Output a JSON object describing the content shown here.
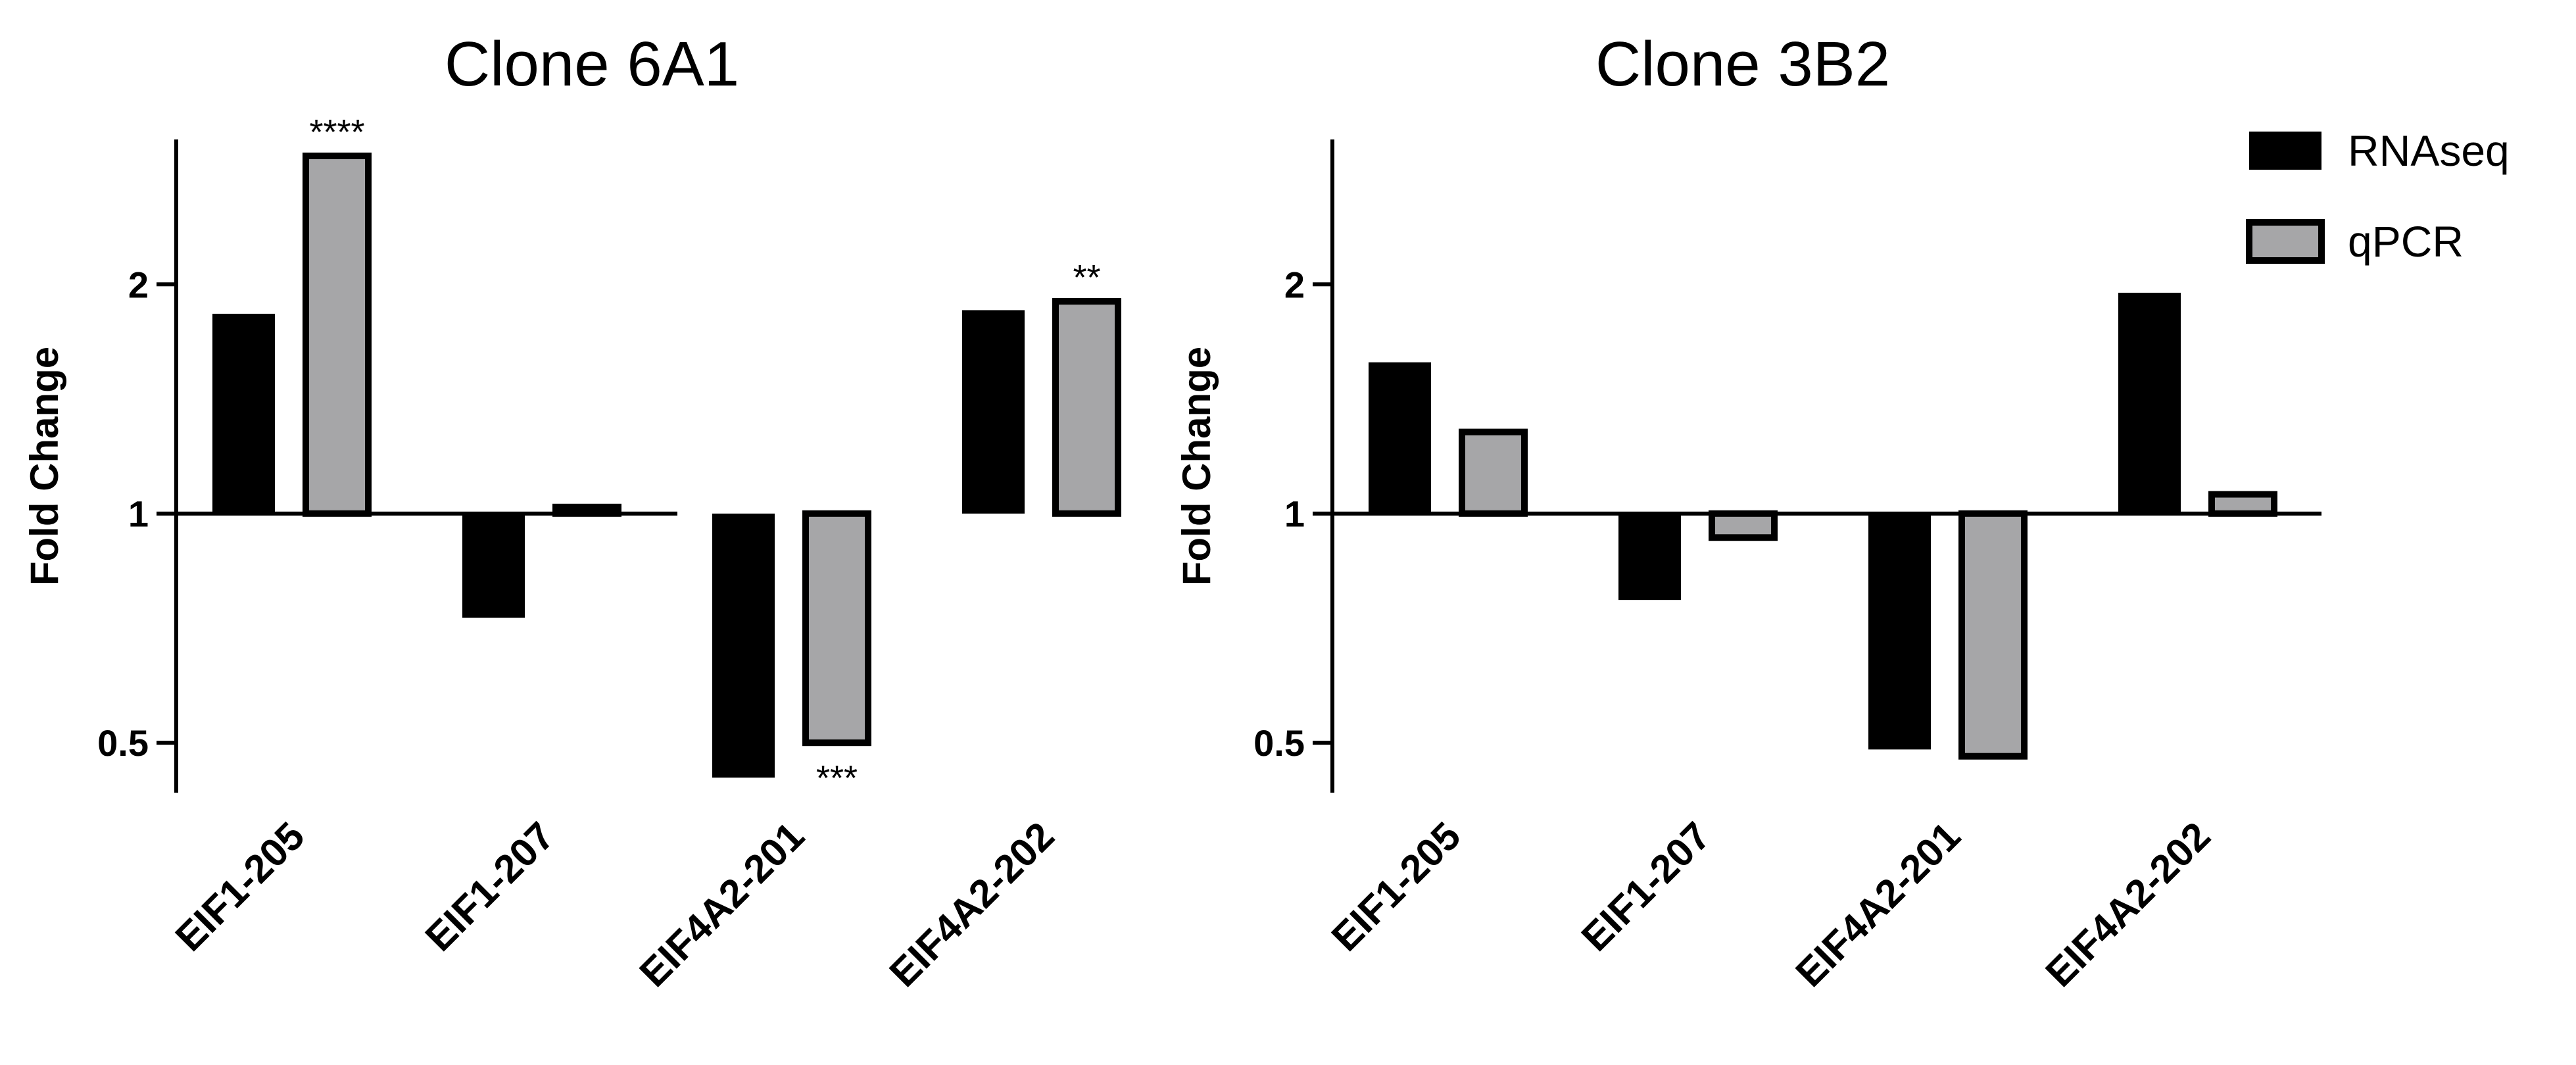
{
  "chart_data": [
    {
      "type": "bar",
      "title": "Clone 6A1",
      "ylabel": "Fold Change",
      "xlabel": "",
      "yscale": "log2",
      "ylim": [
        0.43,
        3.1
      ],
      "yticks": [
        0.5,
        1,
        2
      ],
      "ytick_labels": [
        "0.5",
        "1",
        "2"
      ],
      "baseline": 1,
      "categories": [
        "EIF1-205",
        "EIF1-207",
        "EIF4A2-201",
        "EIF4A2-202"
      ],
      "series": [
        {
          "name": "RNAseq",
          "color": "#000000",
          "values": [
            1.83,
            0.73,
            0.45,
            1.85
          ]
        },
        {
          "name": "qPCR",
          "color": "#a6a6a8",
          "values": [
            2.95,
            1.02,
            0.5,
            1.9
          ]
        }
      ],
      "annotations": [
        {
          "category": "EIF1-205",
          "series": "qPCR",
          "text": "****"
        },
        {
          "category": "EIF4A2-201",
          "series": "qPCR",
          "text": "***"
        },
        {
          "category": "EIF4A2-202",
          "series": "qPCR",
          "text": "**"
        }
      ]
    },
    {
      "type": "bar",
      "title": "Clone 3B2",
      "ylabel": "Fold Change",
      "xlabel": "",
      "yscale": "log2",
      "ylim": [
        0.43,
        3.1
      ],
      "yticks": [
        0.5,
        1,
        2
      ],
      "ytick_labels": [
        "0.5",
        "1",
        "2"
      ],
      "baseline": 1,
      "categories": [
        "EIF1-205",
        "EIF1-207",
        "EIF4A2-201",
        "EIF4A2-202"
      ],
      "series": [
        {
          "name": "RNAseq",
          "color": "#000000",
          "values": [
            1.58,
            0.77,
            0.49,
            1.95
          ]
        },
        {
          "name": "qPCR",
          "color": "#a6a6a8",
          "values": [
            1.28,
            0.93,
            0.48,
            1.06
          ]
        }
      ],
      "legend": {
        "position": "top-right",
        "entries": [
          "RNAseq",
          "qPCR"
        ]
      }
    }
  ]
}
